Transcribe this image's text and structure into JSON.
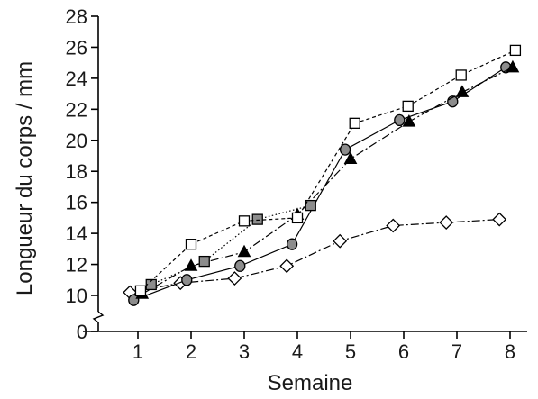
{
  "chart_data": {
    "type": "line",
    "xlabel": "Semaine",
    "ylabel": "Longueur du corps / mm",
    "x_ticks": [
      1,
      2,
      3,
      4,
      5,
      6,
      7,
      8
    ],
    "y_ticks": [
      0,
      10,
      12,
      14,
      16,
      18,
      20,
      22,
      24,
      26,
      28
    ],
    "ylim": [
      10,
      28
    ],
    "y_axis_break": "between 0 and 10",
    "grid": false,
    "legend": "none",
    "series": [
      {
        "marker": "open-square",
        "line_style": "dashed",
        "color": "#000000",
        "x": [
          1.05,
          2.0,
          3.0,
          4.0,
          5.08,
          6.08,
          7.08,
          8.1
        ],
        "y": [
          10.3,
          13.3,
          14.8,
          15.0,
          21.1,
          22.2,
          24.2,
          25.8
        ]
      },
      {
        "marker": "gray-square",
        "line_style": "dotted",
        "color": "#808080",
        "x": [
          1.25,
          2.25,
          3.25,
          4.25
        ],
        "y": [
          10.7,
          12.2,
          14.9,
          15.8
        ]
      },
      {
        "marker": "black-triangle",
        "line_style": "dash-dot",
        "color": "#000000",
        "x": [
          1.08,
          2.0,
          3.0,
          4.0,
          5.0,
          6.1,
          7.1,
          8.05
        ],
        "y": [
          10.1,
          11.9,
          12.8,
          15.2,
          18.8,
          21.2,
          23.1,
          24.7
        ]
      },
      {
        "marker": "gray-circle",
        "line_style": "solid",
        "color": "#808080",
        "x": [
          0.92,
          1.92,
          2.92,
          3.9,
          4.9,
          5.92,
          6.92,
          7.92
        ],
        "y": [
          9.7,
          11.0,
          11.9,
          13.3,
          19.4,
          21.3,
          22.5,
          24.7
        ]
      },
      {
        "marker": "open-diamond",
        "line_style": "dash-dot",
        "color": "#000000",
        "x": [
          0.85,
          1.8,
          2.82,
          3.8,
          4.8,
          5.8,
          6.8,
          7.8
        ],
        "y": [
          10.2,
          10.8,
          11.1,
          11.9,
          13.5,
          14.5,
          14.7,
          14.9
        ]
      }
    ]
  }
}
